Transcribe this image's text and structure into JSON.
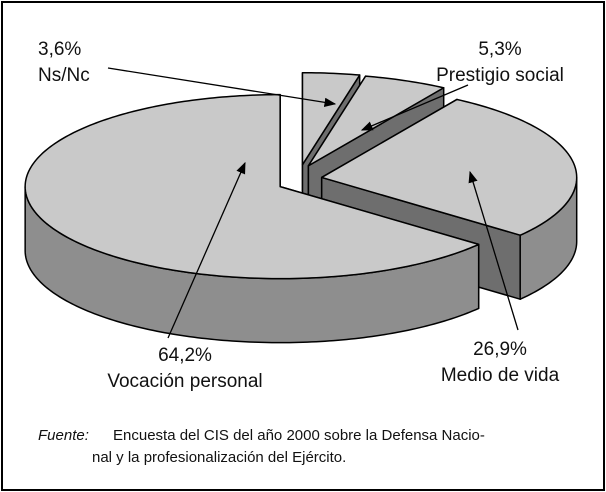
{
  "chart_data": {
    "type": "pie",
    "categories": [
      "Ns/Nc",
      "Prestigio social",
      "Medio de vida",
      "Vocación personal"
    ],
    "values": [
      3.6,
      5.3,
      26.9,
      64.2
    ],
    "value_labels": [
      "3,6%",
      "5,3%",
      "26,9%",
      "64,2%"
    ],
    "source": {
      "label": "Fuente:",
      "lines": [
        "Encuesta del CIS del año 2000 sobre la Defensa Nacio-",
        "nal y la profesionalización del Ejército."
      ]
    }
  }
}
